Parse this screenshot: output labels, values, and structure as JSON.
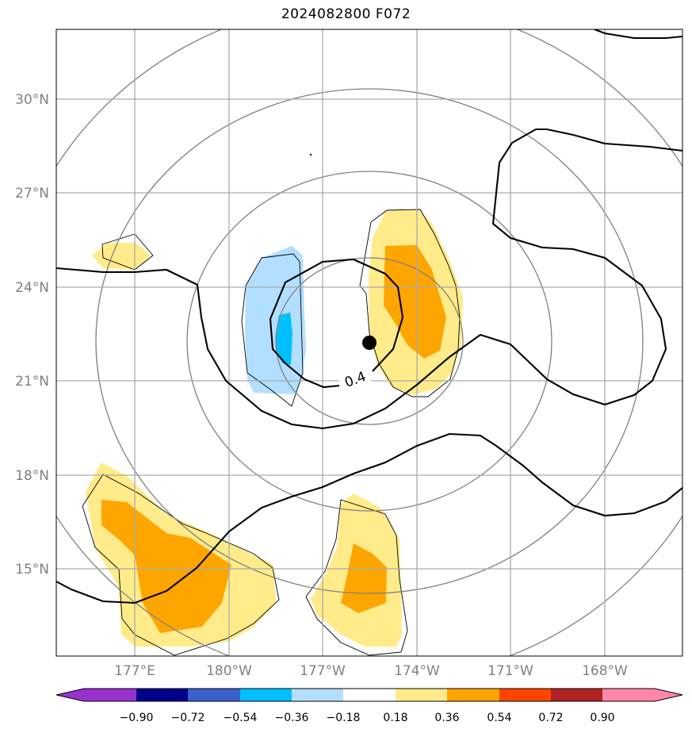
{
  "title": "2024082800 F072",
  "map": {
    "lat_ticks": [
      "30°N",
      "27°N",
      "24°N",
      "21°N",
      "18°N",
      "15°N"
    ],
    "lon_ticks": [
      "177°E",
      "180°W",
      "177°W",
      "174°W",
      "171°W",
      "168°W"
    ],
    "contour_label": "0.4",
    "storm_center": {
      "lat": 22.2,
      "lon": "175.5°W"
    }
  },
  "colorbar": {
    "ticks": [
      "−0.90",
      "−0.72",
      "−0.54",
      "−0.36",
      "−0.18",
      "0.18",
      "0.36",
      "0.54",
      "0.72",
      "0.90"
    ],
    "colors": [
      "#9932cc",
      "#00008b",
      "#3a5fcd",
      "#00bfff",
      "#b2dfff",
      "#ffffff",
      "#ffeb8a",
      "#ffa500",
      "#ff4500",
      "#b22222",
      "#ff88aa"
    ]
  },
  "colors": {
    "light_blue": "#b2dfff",
    "blue": "#00bfff",
    "yellow": "#ffeb8a",
    "orange": "#ffa500",
    "grid": "#aaaaaa",
    "ring": "#808080"
  }
}
